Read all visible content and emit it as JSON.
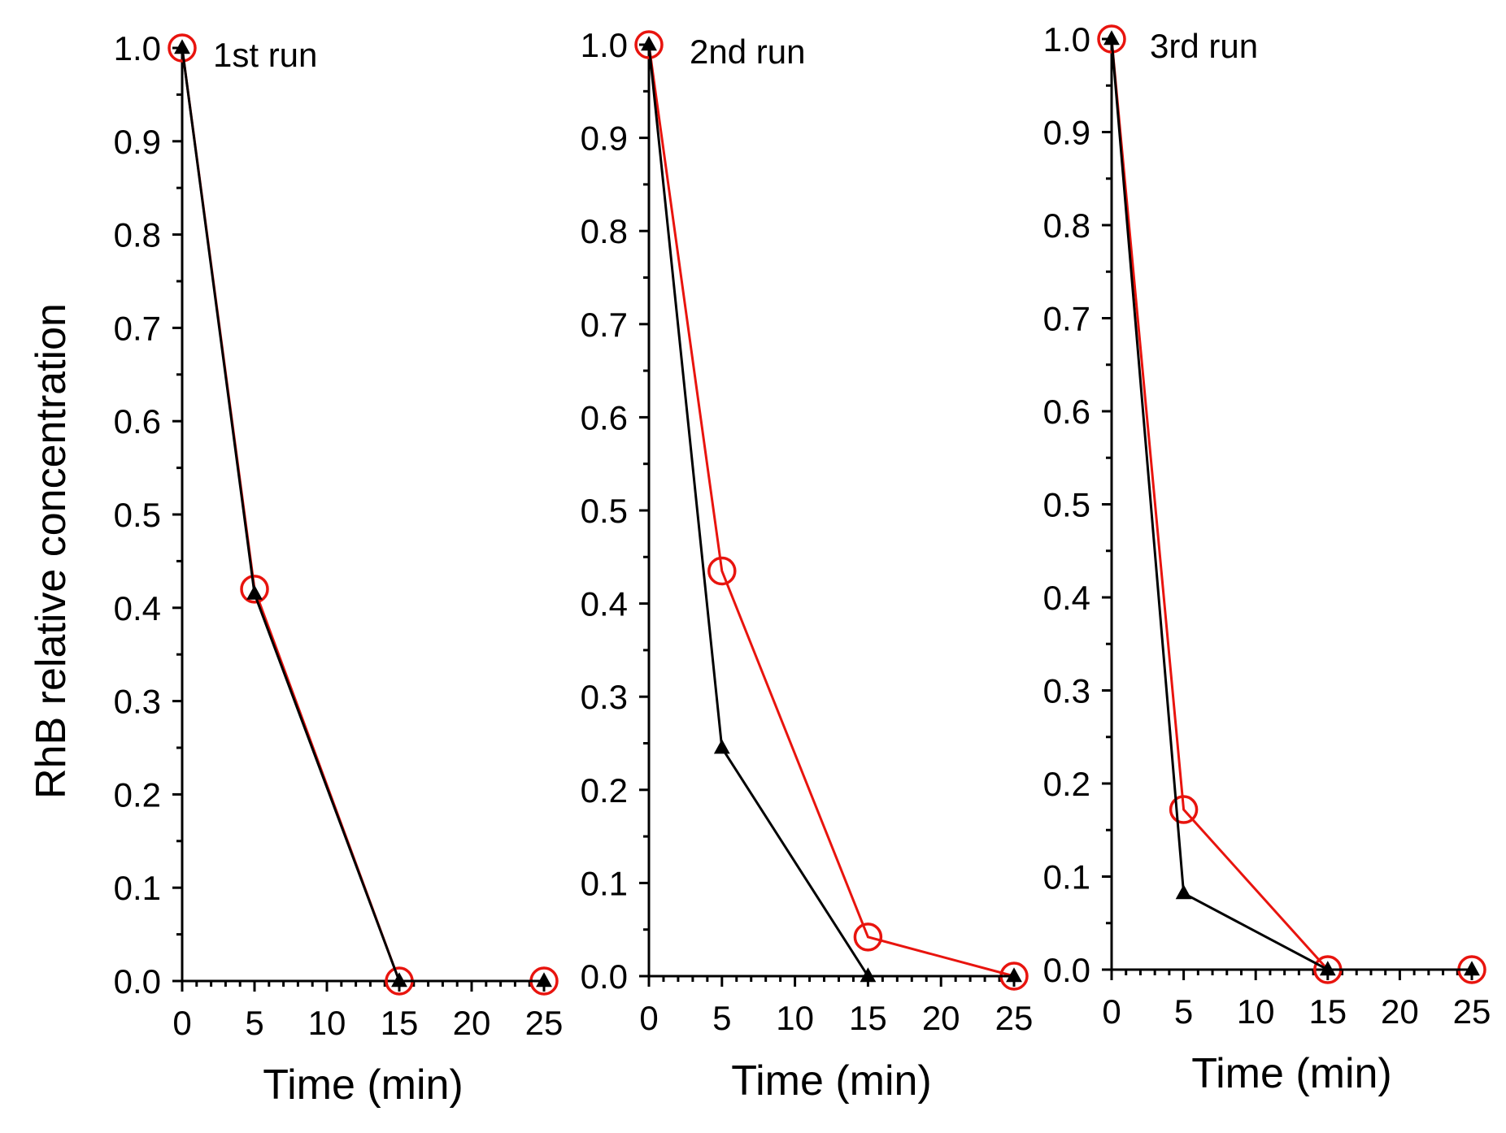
{
  "chart_data": [
    {
      "type": "line",
      "title": "1st run",
      "xlabel": "Time (min)",
      "ylabel": "RhB relative concentration",
      "xlim": [
        0,
        25
      ],
      "ylim": [
        0,
        1.0
      ],
      "xticks": [
        "0",
        "5",
        "10",
        "15",
        "20",
        "25"
      ],
      "yticks": [
        "0.0",
        "0.1",
        "0.2",
        "0.3",
        "0.4",
        "0.5",
        "0.6",
        "0.7",
        "0.8",
        "0.9",
        "1.0"
      ],
      "x": [
        0,
        5,
        15,
        25
      ],
      "series": [
        {
          "name": "black-triangles",
          "color": "#000000",
          "marker": "triangle",
          "values": [
            1.0,
            0.415,
            0.0,
            0.0
          ]
        },
        {
          "name": "red-circles",
          "color": "#e8140e",
          "marker": "circle-open",
          "values": [
            1.0,
            0.42,
            0.0,
            0.0
          ]
        }
      ]
    },
    {
      "type": "line",
      "title": "2nd run",
      "xlabel": "Time (min)",
      "ylabel": "",
      "xlim": [
        0,
        25
      ],
      "ylim": [
        0,
        1.0
      ],
      "xticks": [
        "0",
        "5",
        "10",
        "15",
        "20",
        "25"
      ],
      "yticks": [
        "0.0",
        "0.1",
        "0.2",
        "0.3",
        "0.4",
        "0.5",
        "0.6",
        "0.7",
        "0.8",
        "0.9",
        "1.0"
      ],
      "x": [
        0,
        5,
        15,
        25
      ],
      "series": [
        {
          "name": "black-triangles",
          "color": "#000000",
          "marker": "triangle",
          "values": [
            1.0,
            0.245,
            0.0,
            0.0
          ]
        },
        {
          "name": "red-circles",
          "color": "#e8140e",
          "marker": "circle-open",
          "values": [
            1.0,
            0.435,
            0.042,
            0.0
          ]
        }
      ]
    },
    {
      "type": "line",
      "title": "3rd run",
      "xlabel": "Time (min)",
      "ylabel": "",
      "xlim": [
        0,
        25
      ],
      "ylim": [
        0,
        1.0
      ],
      "xticks": [
        "0",
        "5",
        "10",
        "15",
        "20",
        "25"
      ],
      "yticks": [
        "0.0",
        "0.1",
        "0.2",
        "0.3",
        "0.4",
        "0.5",
        "0.6",
        "0.7",
        "0.8",
        "0.9",
        "1.0"
      ],
      "x": [
        0,
        5,
        15,
        25
      ],
      "series": [
        {
          "name": "black-triangles",
          "color": "#000000",
          "marker": "triangle",
          "values": [
            1.0,
            0.082,
            0.0,
            0.0
          ]
        },
        {
          "name": "red-circles",
          "color": "#e8140e",
          "marker": "circle-open",
          "values": [
            1.0,
            0.172,
            0.0,
            0.0
          ]
        }
      ]
    }
  ]
}
